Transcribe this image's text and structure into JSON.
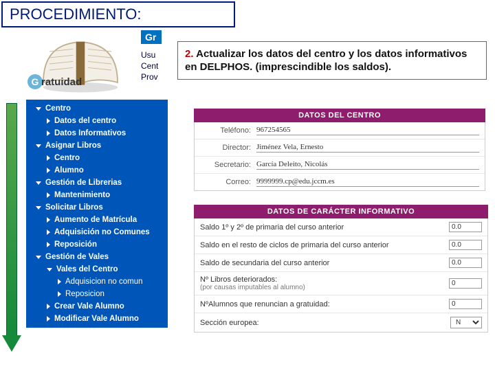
{
  "header": {
    "title": "PROCEDIMIENTO:"
  },
  "logo": {
    "letter": "G",
    "word": "ratuidad"
  },
  "blue": {
    "strip": "Gr",
    "user1": "Usu",
    "user2": "Cent",
    "user3": "Prov"
  },
  "instruction": {
    "num": "2.",
    "text": " Actualizar los datos del centro y los datos informativos en DELPHOS. (imprescindible los saldos)."
  },
  "sidebar": {
    "items": [
      {
        "label": "Centro",
        "indent": 0,
        "triangle": "down",
        "bold": true
      },
      {
        "label": "Datos del centro",
        "indent": 1,
        "triangle": "side",
        "bold": true
      },
      {
        "label": "Datos Informativos",
        "indent": 1,
        "triangle": "side",
        "bold": true
      },
      {
        "label": "Asignar Libros",
        "indent": 0,
        "triangle": "down",
        "bold": true
      },
      {
        "label": "Centro",
        "indent": 1,
        "triangle": "side",
        "bold": true
      },
      {
        "label": "Alumno",
        "indent": 1,
        "triangle": "side",
        "bold": true
      },
      {
        "label": "Gestión de Librerias",
        "indent": 0,
        "triangle": "down",
        "bold": true
      },
      {
        "label": "Mantenimiento",
        "indent": 1,
        "triangle": "side",
        "bold": true
      },
      {
        "label": "Solicitar Libros",
        "indent": 0,
        "triangle": "down",
        "bold": true
      },
      {
        "label": "Aumento de Matrícula",
        "indent": 1,
        "triangle": "side",
        "bold": true
      },
      {
        "label": "Adquisición no Comunes",
        "indent": 1,
        "triangle": "side",
        "bold": true
      },
      {
        "label": "Reposición",
        "indent": 1,
        "triangle": "side",
        "bold": true
      },
      {
        "label": "Gestión de Vales",
        "indent": 0,
        "triangle": "down",
        "bold": true
      },
      {
        "label": "Vales del Centro",
        "indent": 1,
        "triangle": "down",
        "bold": true
      },
      {
        "label": "Adquisicion no comun",
        "indent": 2,
        "triangle": "side",
        "bold": false
      },
      {
        "label": "Reposicion",
        "indent": 2,
        "triangle": "side",
        "bold": false
      },
      {
        "label": "Crear Vale Alumno",
        "indent": 1,
        "triangle": "side",
        "bold": true
      },
      {
        "label": "Modificar Vale Alumno",
        "indent": 1,
        "triangle": "side",
        "bold": true
      }
    ]
  },
  "panel1": {
    "title": "DATOS DEL CENTRO",
    "rows": [
      {
        "label": "Teléfono:",
        "value": "967254565"
      },
      {
        "label": "Director:",
        "value": "Jiménez Vela, Ernesto"
      },
      {
        "label": "Secretario:",
        "value": "García Deleito, Nicolás"
      },
      {
        "label": "Correo:",
        "value": "9999999.cp@edu.jccm.es"
      }
    ]
  },
  "panel2": {
    "title": "DATOS DE CARÁCTER INFORMATIVO",
    "rows": [
      {
        "label": "Saldo 1º y 2º de primaria del curso anterior",
        "value": "0.0",
        "type": "input"
      },
      {
        "label": "Saldo en el resto de ciclos de primaria del curso anterior",
        "value": "0.0",
        "type": "input"
      },
      {
        "label": "Saldo de secundaria del curso anterior",
        "value": "0.0",
        "type": "input"
      },
      {
        "label": "Nº Libros deteriorados:",
        "sub": "(por causas imputables al alumno)",
        "value": "0",
        "type": "input"
      },
      {
        "label": "NºAlumnos que renuncian a gratuidad:",
        "value": "0",
        "type": "input"
      },
      {
        "label": "Sección europea:",
        "value": "N",
        "type": "select"
      }
    ]
  },
  "colors": {
    "headerBorder": "#001a7a",
    "sidebarBg": "#0055b8",
    "panelHeader": "#8e1d6d",
    "instructionNum": "#c00000",
    "arrowGreenTop": "#5aa84d",
    "arrowGreenBottom": "#148a3a"
  }
}
